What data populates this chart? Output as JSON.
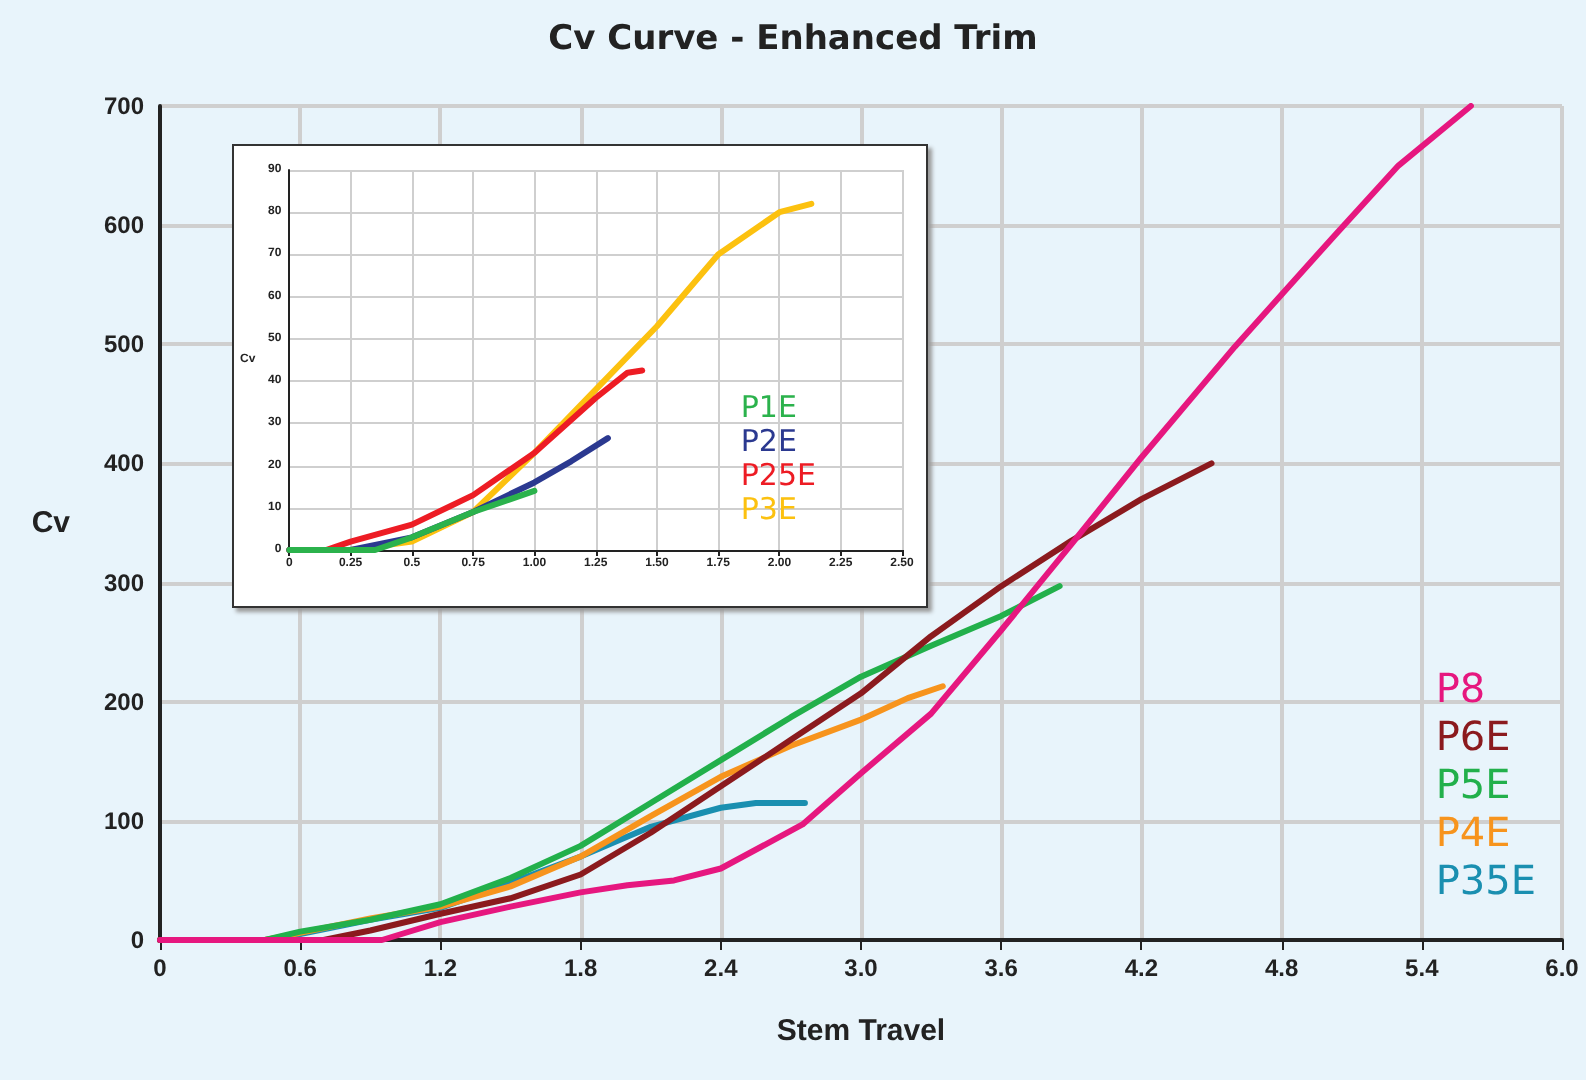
{
  "chart_data": [
    {
      "type": "line",
      "title": "Cv Curve - Enhanced Trim",
      "xlabel": "Stem Travel",
      "ylabel": "Cv",
      "xlim": [
        0,
        6
      ],
      "ylim": [
        0,
        700
      ],
      "xticks": [
        0,
        0.6,
        1.2,
        1.8,
        2.4,
        {
          "value": 3,
          "label": "3.0"
        },
        3.6,
        4.2,
        4.8,
        5.4,
        {
          "value": 6,
          "label": "6.0"
        }
      ],
      "yticks": [
        0,
        100,
        200,
        300,
        400,
        500,
        600,
        700
      ],
      "grid": true,
      "legend": "bottom right",
      "marker": "none",
      "series": [
        {
          "name": "P8",
          "color": "#e6177f",
          "x": [
            0,
            0.95,
            1.2,
            1.5,
            1.8,
            2.0,
            2.2,
            2.4,
            2.75,
            3.0,
            3.3,
            3.6,
            3.9,
            4.2,
            4.6,
            5.03,
            5.3,
            5.61
          ],
          "values": [
            0,
            0,
            15,
            28,
            40,
            46,
            50,
            60,
            97,
            140,
            190,
            260,
            332,
            405,
            498,
            592,
            650,
            700
          ]
        },
        {
          "name": "P6E",
          "color": "#8b1a1e",
          "x": [
            0,
            0.7,
            0.9,
            1.2,
            1.5,
            1.8,
            2.1,
            2.4,
            2.7,
            3.0,
            3.3,
            3.6,
            3.9,
            4.2,
            4.5
          ],
          "values": [
            0,
            0,
            8,
            22,
            35,
            55,
            90,
            129,
            168,
            207,
            255,
            297,
            335,
            370,
            400
          ]
        },
        {
          "name": "P5E",
          "color": "#22b04b",
          "x": [
            0,
            0.45,
            0.6,
            0.9,
            1.2,
            1.5,
            1.8,
            2.1,
            2.4,
            2.7,
            3.0,
            3.3,
            3.6,
            3.85
          ],
          "values": [
            0,
            0,
            7,
            17,
            30,
            52,
            79,
            115,
            151,
            187,
            221,
            247,
            272,
            297
          ]
        },
        {
          "name": "P4E",
          "color": "#f7941d",
          "x": [
            0,
            0.45,
            0.6,
            0.9,
            1.2,
            1.5,
            1.8,
            2.1,
            2.4,
            2.7,
            3.0,
            3.2,
            3.35
          ],
          "values": [
            0,
            0,
            6,
            18,
            28,
            45,
            70,
            104,
            137,
            163,
            185,
            203,
            213
          ]
        },
        {
          "name": "P35E",
          "color": "#1a8fb0",
          "x": [
            0,
            0.45,
            0.6,
            0.9,
            1.2,
            1.5,
            1.8,
            2.1,
            2.4,
            2.55,
            2.76
          ],
          "values": [
            0,
            0,
            5,
            17,
            27,
            48,
            70,
            95,
            111,
            115,
            115
          ]
        }
      ]
    },
    {
      "type": "line",
      "ylabel": "Cv",
      "xlim": [
        0,
        2.5
      ],
      "ylim": [
        0,
        90
      ],
      "xticks": [
        0,
        0.25,
        0.5,
        0.75,
        {
          "value": 1,
          "label": "1.00"
        },
        1.25,
        {
          "value": 1.5,
          "label": "1.50"
        },
        1.75,
        {
          "value": 2,
          "label": "2.00"
        },
        2.25,
        {
          "value": 2.5,
          "label": "2.50"
        }
      ],
      "yticks": [
        0,
        10,
        20,
        30,
        40,
        50,
        60,
        70,
        80,
        90
      ],
      "grid": true,
      "legend": "bottom right",
      "marker": "none",
      "series": [
        {
          "name": "P1E",
          "color": "#2bb24c",
          "x": [
            0,
            0.35,
            0.5,
            0.75,
            1.0
          ],
          "values": [
            0,
            0,
            3,
            9,
            14
          ]
        },
        {
          "name": "P2E",
          "color": "#2b3990",
          "x": [
            0,
            0.25,
            0.5,
            0.75,
            1.0,
            1.15,
            1.3
          ],
          "values": [
            0,
            0,
            3,
            9,
            16,
            21,
            26.5
          ]
        },
        {
          "name": "P25E",
          "color": "#ed1c24",
          "x": [
            0,
            0.15,
            0.25,
            0.5,
            0.75,
            1.0,
            1.25,
            1.38,
            1.44
          ],
          "values": [
            0,
            0,
            2,
            6,
            13,
            23,
            36,
            42,
            42.5
          ]
        },
        {
          "name": "P3E",
          "color": "#fcc10f",
          "x": [
            0,
            0.25,
            0.5,
            0.75,
            1.0,
            1.25,
            1.5,
            1.75,
            2.0,
            2.13
          ],
          "values": [
            0,
            0,
            2,
            9,
            23,
            38,
            53,
            70,
            80,
            82
          ]
        }
      ]
    }
  ]
}
